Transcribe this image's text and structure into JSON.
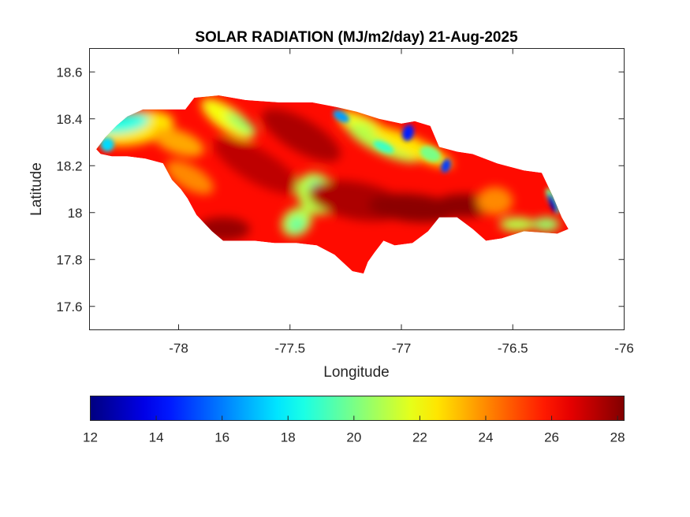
{
  "chart_data": {
    "type": "heatmap",
    "title": "SOLAR RADIATION (MJ/m2/day) 21-Aug-2025",
    "xlabel": "Longitude",
    "ylabel": "Latitude",
    "xlim": [
      -78.4,
      -76
    ],
    "ylim": [
      17.5,
      18.7
    ],
    "xticks": [
      -78,
      -77.5,
      -77,
      -76.5,
      -76
    ],
    "xtick_labels": [
      "-78",
      "-77.5",
      "-77",
      "-76.5",
      "-76"
    ],
    "yticks": [
      17.6,
      17.8,
      18,
      18.2,
      18.4,
      18.6
    ],
    "ytick_labels": [
      "17.6",
      "17.8",
      "18",
      "18.2",
      "18.4",
      "18.6"
    ],
    "grid": false,
    "colormap": "jet",
    "colorbar": {
      "orientation": "horizontal",
      "placement": "bottom",
      "range": [
        12,
        28.2
      ],
      "ticks": [
        12,
        14,
        16,
        18,
        20,
        22,
        24,
        26,
        28
      ],
      "tick_labels": [
        "12",
        "14",
        "16",
        "18",
        "20",
        "22",
        "24",
        "26",
        "28"
      ]
    },
    "region": "Jamaica",
    "outline": [
      [
        -78.37,
        18.27
      ],
      [
        -78.33,
        18.32
      ],
      [
        -78.28,
        18.37
      ],
      [
        -78.23,
        18.41
      ],
      [
        -78.16,
        18.44
      ],
      [
        -78.07,
        18.44
      ],
      [
        -77.97,
        18.44
      ],
      [
        -77.93,
        18.49
      ],
      [
        -77.82,
        18.5
      ],
      [
        -77.7,
        18.48
      ],
      [
        -77.55,
        18.47
      ],
      [
        -77.4,
        18.47
      ],
      [
        -77.29,
        18.45
      ],
      [
        -77.2,
        18.43
      ],
      [
        -77.1,
        18.4
      ],
      [
        -77.0,
        18.38
      ],
      [
        -76.94,
        18.39
      ],
      [
        -76.87,
        18.37
      ],
      [
        -76.83,
        18.28
      ],
      [
        -76.75,
        18.26
      ],
      [
        -76.68,
        18.25
      ],
      [
        -76.57,
        18.21
      ],
      [
        -76.45,
        18.18
      ],
      [
        -76.37,
        18.17
      ],
      [
        -76.32,
        18.07
      ],
      [
        -76.28,
        17.98
      ],
      [
        -76.25,
        17.93
      ],
      [
        -76.3,
        17.91
      ],
      [
        -76.45,
        17.92
      ],
      [
        -76.55,
        17.89
      ],
      [
        -76.62,
        17.88
      ],
      [
        -76.68,
        17.93
      ],
      [
        -76.75,
        17.98
      ],
      [
        -76.83,
        17.98
      ],
      [
        -76.88,
        17.92
      ],
      [
        -76.95,
        17.87
      ],
      [
        -77.03,
        17.86
      ],
      [
        -77.08,
        17.88
      ],
      [
        -77.12,
        17.83
      ],
      [
        -77.15,
        17.79
      ],
      [
        -77.17,
        17.74
      ],
      [
        -77.22,
        17.75
      ],
      [
        -77.3,
        17.82
      ],
      [
        -77.38,
        17.86
      ],
      [
        -77.47,
        17.87
      ],
      [
        -77.57,
        17.87
      ],
      [
        -77.66,
        17.88
      ],
      [
        -77.75,
        17.88
      ],
      [
        -77.8,
        17.88
      ],
      [
        -77.85,
        17.92
      ],
      [
        -77.92,
        17.99
      ],
      [
        -77.96,
        18.06
      ],
      [
        -77.99,
        18.1
      ],
      [
        -78.03,
        18.14
      ],
      [
        -78.07,
        18.21
      ],
      [
        -78.15,
        18.23
      ],
      [
        -78.23,
        18.24
      ],
      [
        -78.3,
        18.24
      ],
      [
        -78.35,
        18.25
      ]
    ],
    "features": [
      {
        "label": "western-cyan-area",
        "lon": -78.22,
        "lat": 18.37,
        "value": 18.5
      },
      {
        "label": "north-west-yellow-band",
        "lon": -77.72,
        "lat": 18.38,
        "value": 21
      },
      {
        "label": "central-cyan-patch",
        "lon": -77.38,
        "lat": 18.09,
        "value": 19
      },
      {
        "label": "south-central-cyan-patch",
        "lon": -77.47,
        "lat": 17.95,
        "value": 19.5
      },
      {
        "label": "north-central-blue-spot",
        "lon": -77.25,
        "lat": 18.41,
        "value": 16
      },
      {
        "label": "north-east-blue-spot",
        "lon": -76.97,
        "lat": 18.34,
        "value": 14.5
      },
      {
        "label": "north-east-blue-spot-2",
        "lon": -76.8,
        "lat": 18.2,
        "value": 15.5
      },
      {
        "label": "eastern-blue-strip",
        "lon": -76.32,
        "lat": 18.04,
        "value": 13
      },
      {
        "label": "south-east-cyan-patch",
        "lon": -76.5,
        "lat": 17.93,
        "value": 19
      },
      {
        "label": "south-east-max-region",
        "lon": -76.75,
        "lat": 18.05,
        "value": 28
      },
      {
        "label": "south-west-max-region",
        "lon": -77.82,
        "lat": 17.92,
        "value": 27.5
      },
      {
        "label": "central-max-region",
        "lon": -77.4,
        "lat": 18.3,
        "value": 27.5
      }
    ]
  }
}
